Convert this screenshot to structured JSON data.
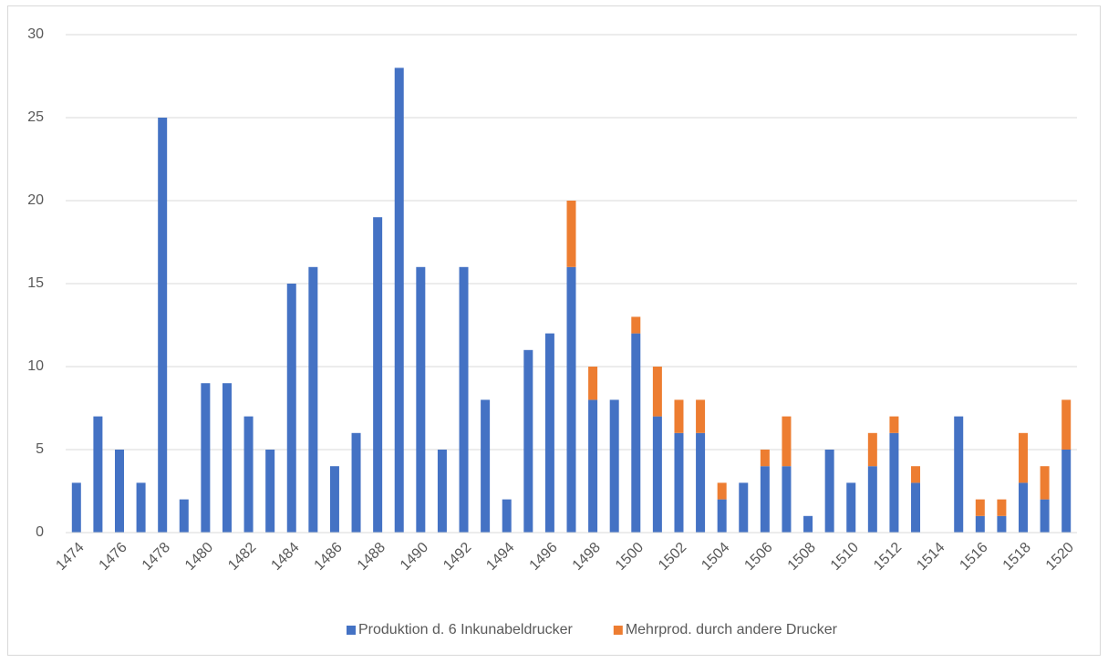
{
  "chart_data": {
    "type": "stacked_bar",
    "categories": [
      "1474",
      null,
      "1476",
      null,
      "1478",
      null,
      "1480",
      null,
      "1482",
      null,
      "1484",
      null,
      "1486",
      null,
      "1488",
      null,
      "1490",
      null,
      "1492",
      null,
      "1494",
      null,
      "1496",
      null,
      "1498",
      null,
      "1500",
      null,
      "1502",
      null,
      "1504",
      null,
      "1506",
      null,
      "1508",
      null,
      "1510",
      null,
      "1512",
      null,
      "1514",
      null,
      "1516",
      null,
      "1518",
      null,
      "1520"
    ],
    "series": [
      {
        "name": "Produktion d. 6 Inkunabeldrucker",
        "color": "#4472c4",
        "values": [
          3,
          7,
          5,
          3,
          25,
          2,
          9,
          9,
          7,
          5,
          15,
          16,
          4,
          6,
          19,
          28,
          16,
          5,
          16,
          8,
          2,
          11,
          12,
          16,
          8,
          8,
          12,
          7,
          6,
          6,
          2,
          3,
          4,
          4,
          1,
          5,
          3,
          4,
          6,
          3,
          0,
          7,
          1,
          1,
          3,
          2,
          5
        ]
      },
      {
        "name": "Mehrprod. durch andere Drucker",
        "color": "#ed7d31",
        "values": [
          0,
          0,
          0,
          0,
          0,
          0,
          0,
          0,
          0,
          0,
          0,
          0,
          0,
          0,
          0,
          0,
          0,
          0,
          0,
          0,
          0,
          0,
          0,
          4,
          2,
          0,
          1,
          3,
          2,
          2,
          1,
          0,
          1,
          3,
          0,
          0,
          0,
          2,
          1,
          1,
          0,
          0,
          1,
          1,
          3,
          2,
          3
        ]
      }
    ],
    "ylim": [
      0,
      30
    ],
    "yticks": [
      0,
      5,
      10,
      15,
      20,
      25,
      30
    ],
    "grid": true,
    "legend": "bottom"
  }
}
